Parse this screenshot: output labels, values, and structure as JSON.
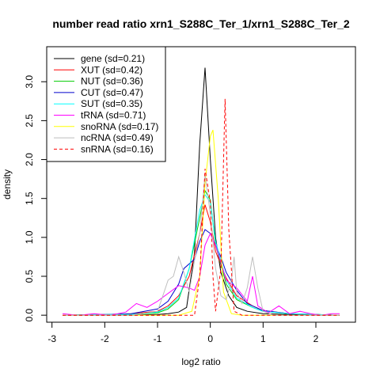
{
  "chart_data": {
    "type": "line",
    "title": "number read ratio xrn1_S288C_Ter_1/xrn1_S288C_Ter_2",
    "xlabel": "log2 ratio",
    "ylabel": "density",
    "xlim": [
      -3.1,
      2.75
    ],
    "ylim": [
      -0.09,
      3.45
    ],
    "x_ticks": [
      -3,
      -2,
      -1,
      0,
      1,
      2
    ],
    "x_tick_labels": [
      "-3",
      "-2",
      "-1",
      "0",
      "1",
      "2"
    ],
    "y_ticks": [
      0.0,
      0.5,
      1.0,
      1.5,
      2.0,
      2.5,
      3.0
    ],
    "y_tick_labels": [
      "0.0",
      "0.5",
      "1.0",
      "1.5",
      "2.0",
      "2.5",
      "3.0"
    ],
    "grid": false,
    "legend_position": "top-left",
    "series": [
      {
        "name": "gene (sd=0.21)",
        "color": "#000000",
        "dashed": false,
        "x": [
          -2.8,
          -2.0,
          -1.5,
          -1.0,
          -0.8,
          -0.6,
          -0.45,
          -0.3,
          -0.2,
          -0.1,
          0.0,
          0.1,
          0.2,
          0.35,
          0.5,
          0.7,
          1.0,
          1.5,
          2.0,
          2.45
        ],
        "y": [
          0.0,
          0.0,
          0.0,
          0.01,
          0.02,
          0.04,
          0.1,
          0.8,
          2.2,
          3.18,
          2.0,
          1.0,
          0.55,
          0.25,
          0.1,
          0.05,
          0.02,
          0.01,
          0.0,
          0.0
        ]
      },
      {
        "name": "XUT (sd=0.42)",
        "color": "#ff0000",
        "dashed": false,
        "x": [
          -2.8,
          -2.0,
          -1.5,
          -1.0,
          -0.8,
          -0.6,
          -0.4,
          -0.2,
          -0.1,
          0.0,
          0.1,
          0.3,
          0.5,
          0.8,
          1.0,
          1.5,
          2.0,
          2.45
        ],
        "y": [
          0.0,
          0.01,
          0.02,
          0.05,
          0.12,
          0.25,
          0.5,
          1.05,
          1.42,
          1.2,
          0.82,
          0.48,
          0.25,
          0.12,
          0.06,
          0.02,
          0.01,
          0.0
        ]
      },
      {
        "name": "NUT (sd=0.36)",
        "color": "#00cc00",
        "dashed": false,
        "x": [
          -2.8,
          -2.0,
          -1.5,
          -1.0,
          -0.8,
          -0.6,
          -0.4,
          -0.2,
          -0.1,
          0.0,
          0.1,
          0.3,
          0.5,
          0.8,
          1.0,
          1.5,
          2.0,
          2.45
        ],
        "y": [
          0.0,
          0.01,
          0.01,
          0.03,
          0.08,
          0.2,
          0.6,
          1.25,
          1.6,
          1.48,
          0.9,
          0.4,
          0.2,
          0.1,
          0.05,
          0.02,
          0.01,
          0.0
        ]
      },
      {
        "name": "CUT (sd=0.47)",
        "color": "#0000cc",
        "dashed": false,
        "x": [
          -2.8,
          -2.0,
          -1.5,
          -1.0,
          -0.8,
          -0.6,
          -0.5,
          -0.3,
          -0.2,
          -0.1,
          0.0,
          0.1,
          0.2,
          0.3,
          0.5,
          0.7,
          1.0,
          1.5,
          2.0,
          2.45
        ],
        "y": [
          0.0,
          0.01,
          0.02,
          0.08,
          0.18,
          0.4,
          0.6,
          0.72,
          0.95,
          1.1,
          1.05,
          0.9,
          0.75,
          0.55,
          0.32,
          0.15,
          0.06,
          0.02,
          0.01,
          0.0
        ]
      },
      {
        "name": "SUT (sd=0.35)",
        "color": "#00ffff",
        "dashed": false,
        "x": [
          -2.8,
          -2.0,
          -1.5,
          -1.0,
          -0.8,
          -0.6,
          -0.4,
          -0.2,
          -0.1,
          0.0,
          0.1,
          0.3,
          0.5,
          0.8,
          1.0,
          1.5,
          2.0,
          2.45
        ],
        "y": [
          0.0,
          0.01,
          0.01,
          0.04,
          0.1,
          0.22,
          0.6,
          1.35,
          1.55,
          1.45,
          0.95,
          0.45,
          0.22,
          0.1,
          0.05,
          0.02,
          0.01,
          0.0
        ]
      },
      {
        "name": "tRNA (sd=0.71)",
        "color": "#ff00ff",
        "dashed": false,
        "x": [
          -2.8,
          -2.5,
          -2.2,
          -1.9,
          -1.6,
          -1.4,
          -1.2,
          -1.0,
          -0.8,
          -0.6,
          -0.4,
          -0.3,
          -0.2,
          -0.1,
          0.0,
          0.1,
          0.3,
          0.5,
          0.7,
          0.8,
          0.9,
          1.1,
          1.3,
          1.5,
          1.7,
          1.9,
          2.1,
          2.3,
          2.45
        ],
        "y": [
          0.02,
          0.0,
          0.02,
          0.0,
          0.04,
          0.15,
          0.1,
          0.18,
          0.28,
          0.38,
          0.35,
          0.32,
          0.5,
          0.9,
          1.05,
          0.9,
          0.45,
          0.35,
          0.18,
          0.5,
          0.12,
          0.03,
          0.12,
          0.02,
          0.05,
          0.02,
          0.0,
          0.02,
          0.02
        ]
      },
      {
        "name": "snoRNA (sd=0.17)",
        "color": "#ffff00",
        "dashed": false,
        "x": [
          -2.8,
          -1.5,
          -0.6,
          -0.35,
          -0.2,
          -0.1,
          0.0,
          0.05,
          0.15,
          0.25,
          0.4,
          0.6,
          1.0,
          2.45
        ],
        "y": [
          0.0,
          0.0,
          0.0,
          0.05,
          0.5,
          1.7,
          2.3,
          2.38,
          1.5,
          0.3,
          0.02,
          0.0,
          0.0,
          0.0
        ]
      },
      {
        "name": "ncRNA (sd=0.49)",
        "color": "#bebebe",
        "dashed": false,
        "x": [
          -2.8,
          -2.0,
          -1.5,
          -1.0,
          -0.9,
          -0.8,
          -0.7,
          -0.6,
          -0.5,
          -0.4,
          -0.3,
          -0.2,
          -0.1,
          0.0,
          0.1,
          0.2,
          0.3,
          0.4,
          0.45,
          0.5,
          0.6,
          0.7,
          0.8,
          0.9,
          1.0,
          1.2,
          2.0,
          2.45
        ],
        "y": [
          0.0,
          0.0,
          0.0,
          0.05,
          0.25,
          0.45,
          0.5,
          0.75,
          0.55,
          0.3,
          0.7,
          1.05,
          1.8,
          1.3,
          0.6,
          0.25,
          0.2,
          0.45,
          0.75,
          0.3,
          0.15,
          0.35,
          0.75,
          0.35,
          0.05,
          0.0,
          0.0,
          0.0
        ]
      },
      {
        "name": "snRNA (sd=0.16)",
        "color": "#ff0000",
        "dashed": true,
        "x": [
          -2.8,
          -1.5,
          -0.3,
          -0.2,
          -0.1,
          0.0,
          0.05,
          0.1,
          0.2,
          0.28,
          0.35,
          0.45,
          0.6,
          1.0,
          2.45
        ],
        "y": [
          0.0,
          0.0,
          0.0,
          0.5,
          1.88,
          1.45,
          0.5,
          0.05,
          0.6,
          2.78,
          1.1,
          0.05,
          0.0,
          0.0,
          0.0
        ]
      }
    ]
  }
}
